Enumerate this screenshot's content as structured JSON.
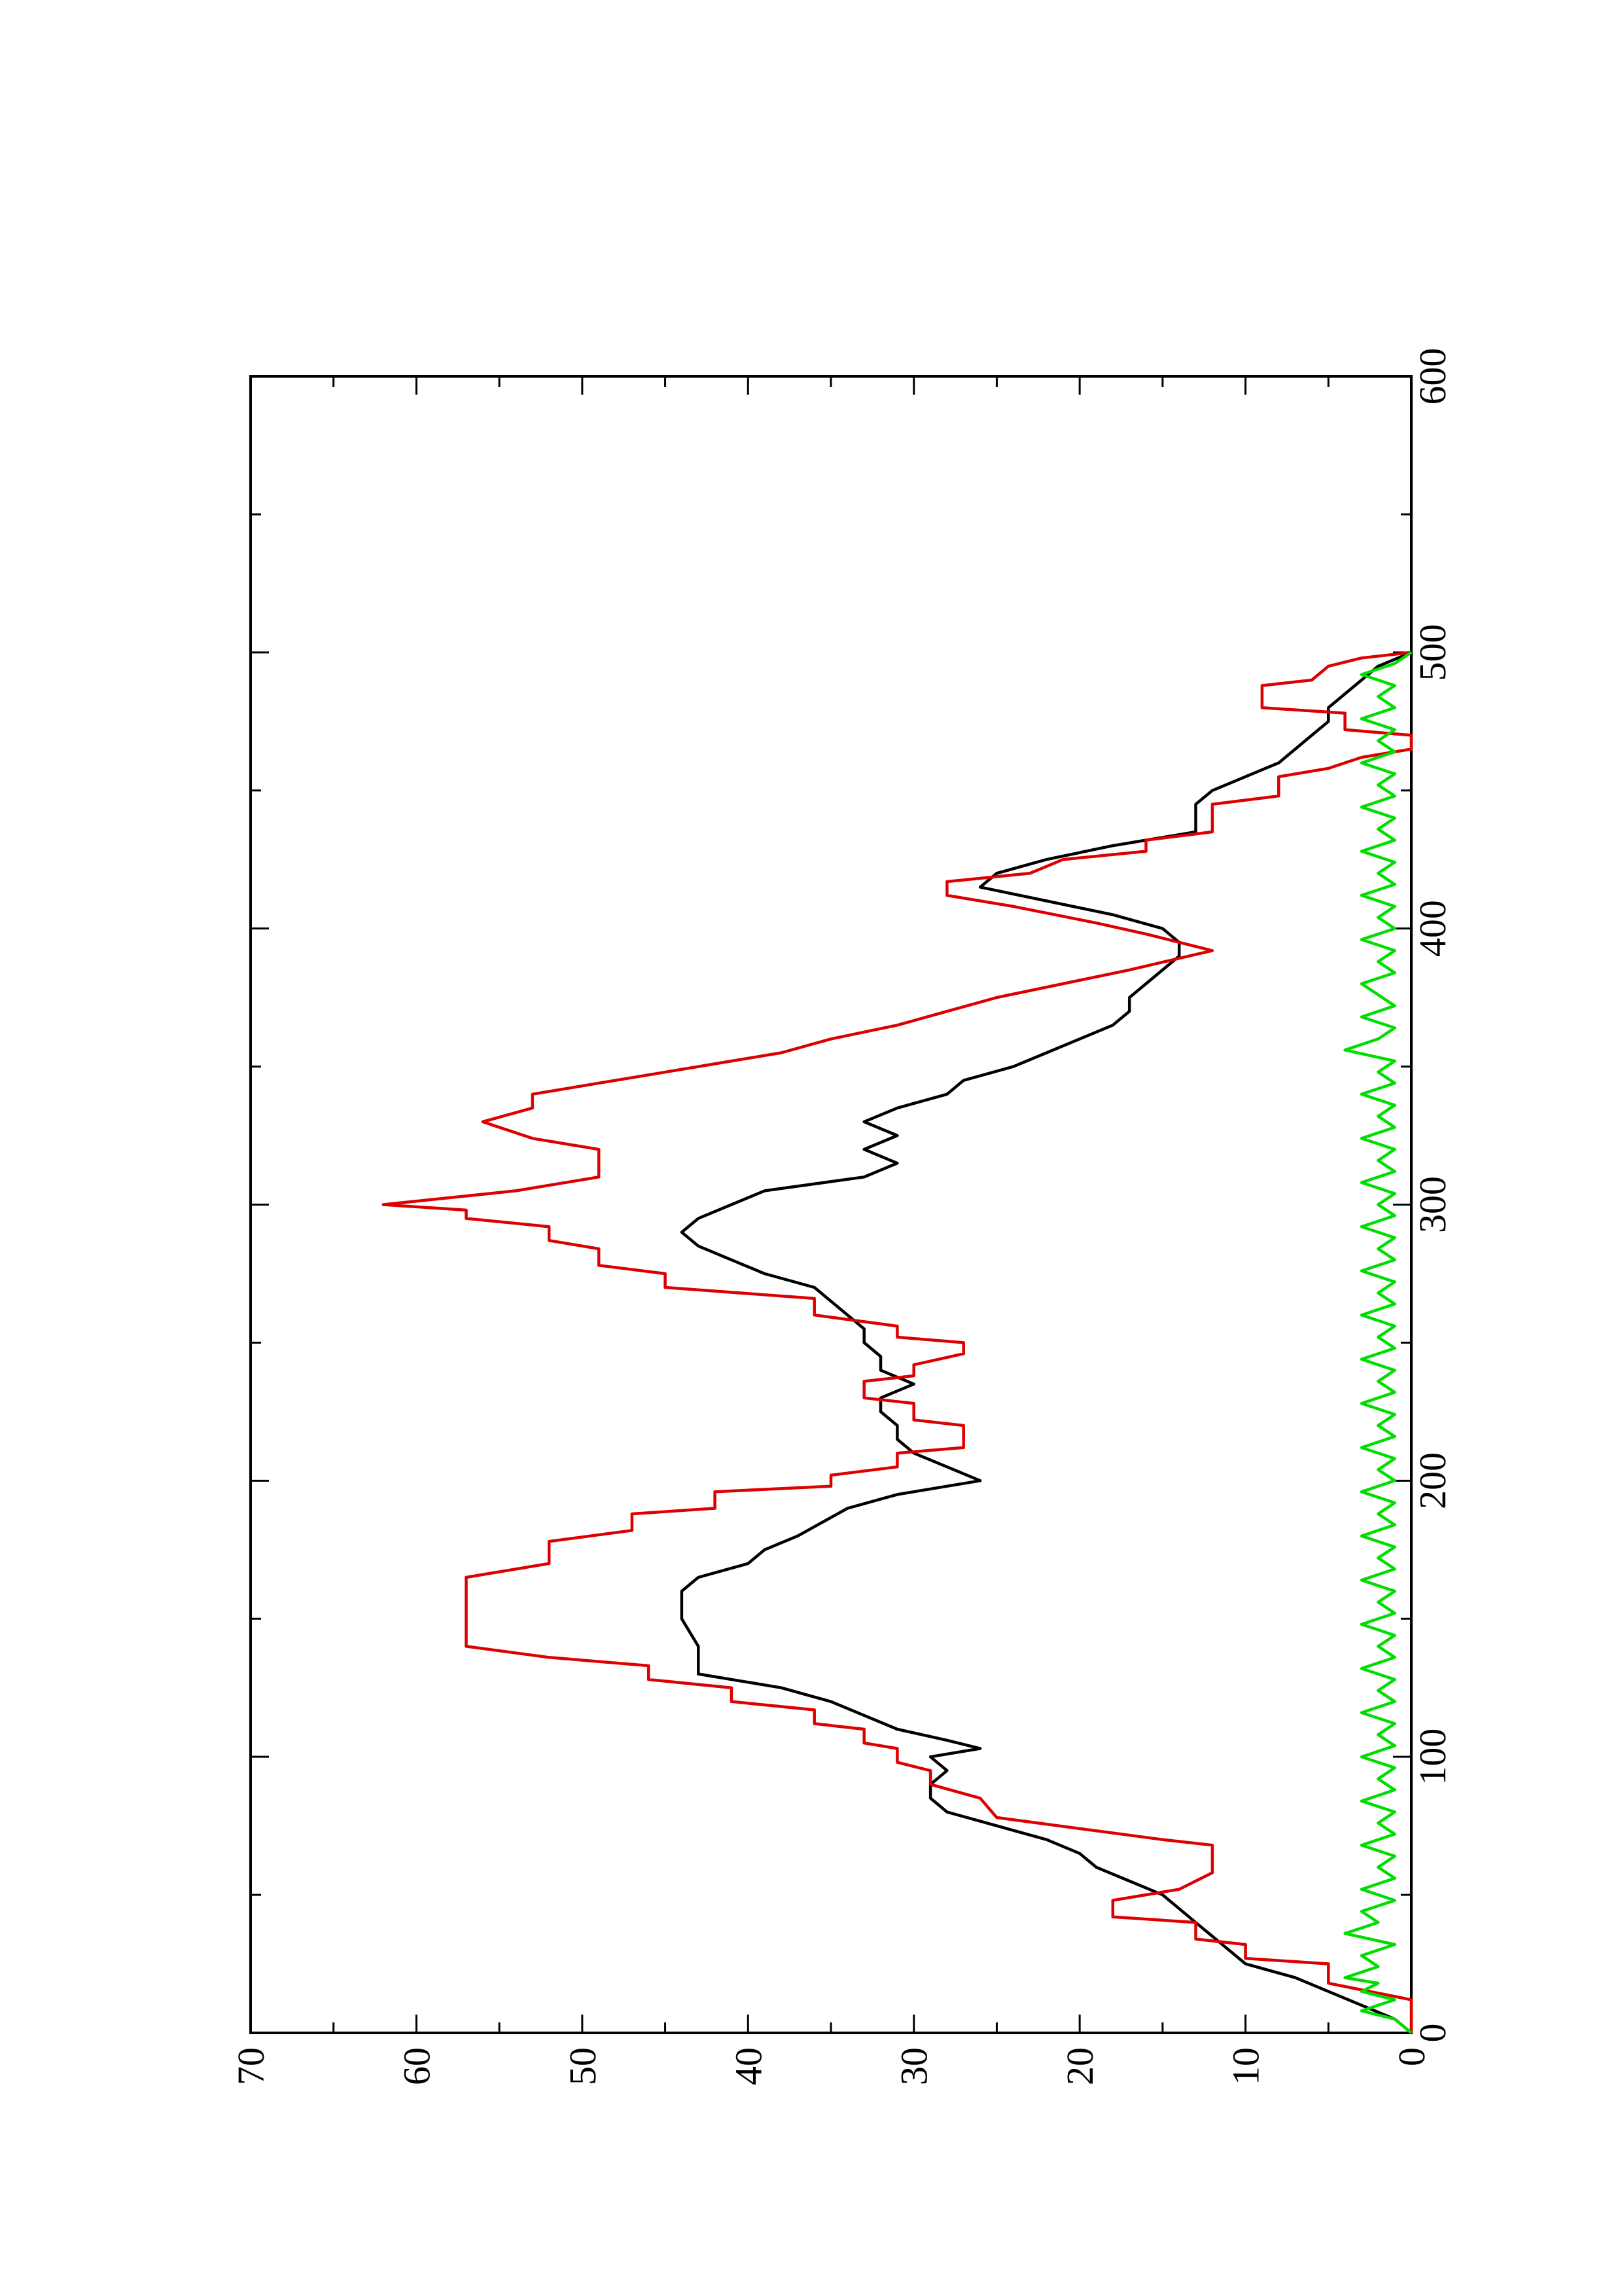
{
  "chart_data": {
    "type": "line",
    "title": "",
    "xlabel": "",
    "ylabel": "",
    "orientation": "rotated-90-ccw",
    "grid": false,
    "legend": "none",
    "xlim": [
      0,
      600
    ],
    "ylim": [
      0,
      70
    ],
    "x_ticks": [
      "0",
      "100",
      "200",
      "300",
      "400",
      "500",
      "600"
    ],
    "y_ticks": [
      "0",
      "10",
      "20",
      "30",
      "40",
      "50",
      "60",
      "70"
    ],
    "series": [
      {
        "color": "#000000",
        "style": "smooth",
        "points": [
          [
            0,
            0
          ],
          [
            5,
            1
          ],
          [
            10,
            3
          ],
          [
            15,
            5
          ],
          [
            20,
            7
          ],
          [
            25,
            10
          ],
          [
            30,
            11
          ],
          [
            35,
            12
          ],
          [
            40,
            13
          ],
          [
            45,
            14
          ],
          [
            50,
            15
          ],
          [
            55,
            17
          ],
          [
            60,
            19
          ],
          [
            65,
            20
          ],
          [
            70,
            22
          ],
          [
            75,
            25
          ],
          [
            80,
            28
          ],
          [
            85,
            29
          ],
          [
            90,
            29
          ],
          [
            95,
            28
          ],
          [
            100,
            29
          ],
          [
            103,
            26
          ],
          [
            106,
            28
          ],
          [
            110,
            31
          ],
          [
            115,
            33
          ],
          [
            120,
            35
          ],
          [
            125,
            38
          ],
          [
            130,
            43
          ],
          [
            140,
            43
          ],
          [
            150,
            44
          ],
          [
            160,
            44
          ],
          [
            165,
            43
          ],
          [
            170,
            40
          ],
          [
            175,
            39
          ],
          [
            180,
            37
          ],
          [
            190,
            34
          ],
          [
            195,
            31
          ],
          [
            200,
            26
          ],
          [
            205,
            28
          ],
          [
            210,
            30
          ],
          [
            215,
            31
          ],
          [
            220,
            31
          ],
          [
            225,
            32
          ],
          [
            230,
            32
          ],
          [
            235,
            30
          ],
          [
            240,
            32
          ],
          [
            245,
            32
          ],
          [
            250,
            33
          ],
          [
            255,
            33
          ],
          [
            260,
            34
          ],
          [
            265,
            35
          ],
          [
            270,
            36
          ],
          [
            275,
            39
          ],
          [
            285,
            43
          ],
          [
            290,
            44
          ],
          [
            295,
            43
          ],
          [
            300,
            41
          ],
          [
            305,
            39
          ],
          [
            310,
            33
          ],
          [
            315,
            31
          ],
          [
            320,
            33
          ],
          [
            325,
            31
          ],
          [
            330,
            33
          ],
          [
            335,
            31
          ],
          [
            340,
            28
          ],
          [
            345,
            27
          ],
          [
            350,
            24
          ],
          [
            355,
            22
          ],
          [
            360,
            20
          ],
          [
            365,
            18
          ],
          [
            370,
            17
          ],
          [
            375,
            17
          ],
          [
            380,
            16
          ],
          [
            385,
            15
          ],
          [
            390,
            14
          ],
          [
            395,
            14
          ],
          [
            400,
            15
          ],
          [
            405,
            18
          ],
          [
            410,
            22
          ],
          [
            415,
            26
          ],
          [
            420,
            25
          ],
          [
            425,
            22
          ],
          [
            430,
            18
          ],
          [
            435,
            13
          ],
          [
            440,
            13
          ],
          [
            445,
            13
          ],
          [
            450,
            12
          ],
          [
            455,
            10
          ],
          [
            460,
            8
          ],
          [
            465,
            7
          ],
          [
            470,
            6
          ],
          [
            475,
            5
          ],
          [
            480,
            5
          ],
          [
            485,
            4
          ],
          [
            490,
            3
          ],
          [
            495,
            2
          ],
          [
            500,
            0
          ]
        ]
      },
      {
        "color": "#dd0000",
        "style": "step",
        "points": [
          [
            0,
            0
          ],
          [
            12,
            0
          ],
          [
            18,
            5
          ],
          [
            25,
            5
          ],
          [
            27,
            10
          ],
          [
            32,
            10
          ],
          [
            34,
            13
          ],
          [
            40,
            13
          ],
          [
            42,
            18
          ],
          [
            48,
            18
          ],
          [
            52,
            14
          ],
          [
            58,
            12
          ],
          [
            68,
            12
          ],
          [
            70,
            15
          ],
          [
            78,
            25
          ],
          [
            85,
            26
          ],
          [
            90,
            29
          ],
          [
            95,
            29
          ],
          [
            98,
            31
          ],
          [
            103,
            31
          ],
          [
            105,
            33
          ],
          [
            110,
            33
          ],
          [
            112,
            36
          ],
          [
            117,
            36
          ],
          [
            120,
            41
          ],
          [
            125,
            41
          ],
          [
            128,
            46
          ],
          [
            133,
            46
          ],
          [
            136,
            52
          ],
          [
            140,
            57
          ],
          [
            165,
            57
          ],
          [
            170,
            52
          ],
          [
            178,
            52
          ],
          [
            182,
            47
          ],
          [
            188,
            47
          ],
          [
            190,
            42
          ],
          [
            196,
            42
          ],
          [
            198,
            35
          ],
          [
            202,
            35
          ],
          [
            205,
            31
          ],
          [
            210,
            31
          ],
          [
            212,
            27
          ],
          [
            220,
            27
          ],
          [
            222,
            30
          ],
          [
            228,
            30
          ],
          [
            230,
            33
          ],
          [
            236,
            33
          ],
          [
            238,
            30
          ],
          [
            242,
            30
          ],
          [
            246,
            27
          ],
          [
            250,
            27
          ],
          [
            252,
            31
          ],
          [
            256,
            31
          ],
          [
            260,
            36
          ],
          [
            266,
            36
          ],
          [
            270,
            45
          ],
          [
            275,
            45
          ],
          [
            278,
            49
          ],
          [
            284,
            49
          ],
          [
            287,
            52
          ],
          [
            292,
            52
          ],
          [
            295,
            57
          ],
          [
            298,
            57
          ],
          [
            300,
            62
          ],
          [
            305,
            54
          ],
          [
            310,
            49
          ],
          [
            320,
            49
          ],
          [
            324,
            53
          ],
          [
            330,
            56
          ],
          [
            335,
            53
          ],
          [
            340,
            53
          ],
          [
            345,
            48
          ],
          [
            350,
            43
          ],
          [
            355,
            38
          ],
          [
            360,
            35
          ],
          [
            365,
            31
          ],
          [
            370,
            28
          ],
          [
            375,
            25
          ],
          [
            380,
            21
          ],
          [
            385,
            17
          ],
          [
            392,
            12
          ],
          [
            398,
            16
          ],
          [
            402,
            19
          ],
          [
            408,
            24
          ],
          [
            412,
            28
          ],
          [
            417,
            28
          ],
          [
            420,
            23
          ],
          [
            425,
            21
          ],
          [
            428,
            16
          ],
          [
            432,
            16
          ],
          [
            435,
            12
          ],
          [
            445,
            12
          ],
          [
            448,
            8
          ],
          [
            455,
            8
          ],
          [
            458,
            5
          ],
          [
            462,
            3
          ],
          [
            465,
            0
          ],
          [
            470,
            0
          ],
          [
            472,
            4
          ],
          [
            478,
            4
          ],
          [
            480,
            9
          ],
          [
            488,
            9
          ],
          [
            490,
            6
          ],
          [
            495,
            5
          ],
          [
            498,
            3
          ],
          [
            500,
            0
          ]
        ]
      },
      {
        "color": "#00dd00",
        "style": "noisy",
        "points": [
          [
            0,
            0
          ],
          [
            5,
            1
          ],
          [
            8,
            3
          ],
          [
            10,
            2
          ],
          [
            12,
            1
          ],
          [
            15,
            3
          ],
          [
            18,
            2
          ],
          [
            20,
            4
          ],
          [
            24,
            2
          ],
          [
            28,
            3
          ],
          [
            32,
            1
          ],
          [
            36,
            4
          ],
          [
            40,
            2
          ],
          [
            44,
            3
          ],
          [
            48,
            1
          ],
          [
            52,
            3
          ],
          [
            56,
            1
          ],
          [
            60,
            2
          ],
          [
            64,
            1
          ],
          [
            68,
            3
          ],
          [
            72,
            1
          ],
          [
            76,
            2
          ],
          [
            80,
            1
          ],
          [
            84,
            3
          ],
          [
            88,
            1
          ],
          [
            92,
            2
          ],
          [
            96,
            1
          ],
          [
            100,
            3
          ],
          [
            104,
            1
          ],
          [
            108,
            2
          ],
          [
            112,
            1
          ],
          [
            116,
            3
          ],
          [
            120,
            1
          ],
          [
            124,
            2
          ],
          [
            128,
            1
          ],
          [
            132,
            3
          ],
          [
            136,
            1
          ],
          [
            140,
            2
          ],
          [
            144,
            1
          ],
          [
            148,
            3
          ],
          [
            152,
            1
          ],
          [
            156,
            2
          ],
          [
            160,
            1
          ],
          [
            164,
            3
          ],
          [
            168,
            1
          ],
          [
            172,
            2
          ],
          [
            176,
            1
          ],
          [
            180,
            3
          ],
          [
            184,
            1
          ],
          [
            188,
            2
          ],
          [
            192,
            1
          ],
          [
            196,
            3
          ],
          [
            200,
            1
          ],
          [
            204,
            2
          ],
          [
            208,
            1
          ],
          [
            212,
            3
          ],
          [
            216,
            1
          ],
          [
            220,
            2
          ],
          [
            224,
            1
          ],
          [
            228,
            3
          ],
          [
            232,
            1
          ],
          [
            236,
            2
          ],
          [
            240,
            1
          ],
          [
            244,
            3
          ],
          [
            248,
            1
          ],
          [
            252,
            2
          ],
          [
            256,
            1
          ],
          [
            260,
            3
          ],
          [
            264,
            1
          ],
          [
            268,
            2
          ],
          [
            272,
            1
          ],
          [
            276,
            3
          ],
          [
            280,
            1
          ],
          [
            284,
            2
          ],
          [
            288,
            1
          ],
          [
            292,
            3
          ],
          [
            296,
            1
          ],
          [
            300,
            2
          ],
          [
            304,
            1
          ],
          [
            308,
            3
          ],
          [
            312,
            1
          ],
          [
            316,
            2
          ],
          [
            320,
            1
          ],
          [
            324,
            3
          ],
          [
            328,
            1
          ],
          [
            332,
            2
          ],
          [
            336,
            1
          ],
          [
            340,
            3
          ],
          [
            344,
            1
          ],
          [
            348,
            2
          ],
          [
            352,
            1
          ],
          [
            356,
            4
          ],
          [
            360,
            2
          ],
          [
            364,
            1
          ],
          [
            368,
            3
          ],
          [
            372,
            1
          ],
          [
            376,
            2
          ],
          [
            380,
            3
          ],
          [
            384,
            1
          ],
          [
            388,
            2
          ],
          [
            392,
            1
          ],
          [
            396,
            3
          ],
          [
            400,
            1
          ],
          [
            404,
            2
          ],
          [
            408,
            1
          ],
          [
            412,
            3
          ],
          [
            416,
            1
          ],
          [
            420,
            2
          ],
          [
            424,
            1
          ],
          [
            428,
            3
          ],
          [
            432,
            1
          ],
          [
            436,
            2
          ],
          [
            440,
            1
          ],
          [
            444,
            3
          ],
          [
            448,
            1
          ],
          [
            452,
            2
          ],
          [
            456,
            1
          ],
          [
            460,
            3
          ],
          [
            464,
            1
          ],
          [
            468,
            2
          ],
          [
            472,
            1
          ],
          [
            476,
            3
          ],
          [
            480,
            1
          ],
          [
            484,
            2
          ],
          [
            488,
            1
          ],
          [
            492,
            3
          ],
          [
            496,
            1
          ],
          [
            500,
            0
          ]
        ]
      }
    ]
  }
}
